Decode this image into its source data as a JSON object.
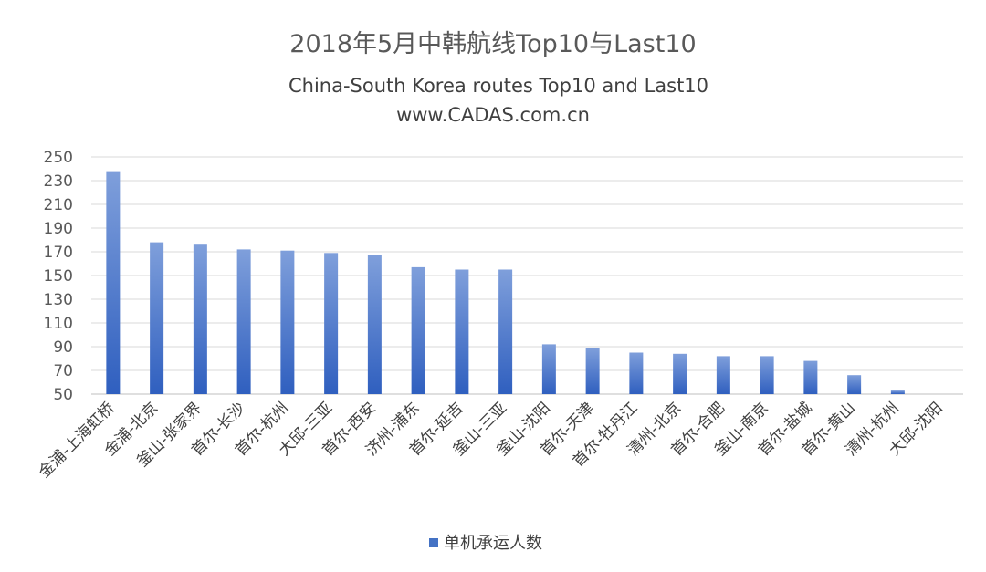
{
  "chart_data": {
    "type": "bar",
    "title": "2018年5月中韩航线Top10与Last10",
    "subtitle_en": "China-South Korea routes Top10 and Last10",
    "source": "www.CADAS.com.cn",
    "categories": [
      "金浦-上海虹桥",
      "金浦-北京",
      "釜山-张家界",
      "首尔-长沙",
      "首尔-杭州",
      "大邱-三亚",
      "首尔-西安",
      "济州-浦东",
      "首尔-延吉",
      "釜山-三亚",
      "釜山-沈阳",
      "首尔-天津",
      "首尔-牡丹江",
      "清州-北京",
      "首尔-合肥",
      "釜山-南京",
      "首尔-盐城",
      "首尔-黄山",
      "清州-杭州",
      "大邱-沈阳"
    ],
    "series": [
      {
        "name": "单机承运人数",
        "color": "#4472c4",
        "values": [
          238,
          178,
          176,
          172,
          171,
          169,
          167,
          157,
          155,
          155,
          92,
          89,
          85,
          84,
          82,
          82,
          78,
          66,
          53,
          50
        ]
      }
    ],
    "yticks": [
      50,
      70,
      90,
      110,
      130,
      150,
      170,
      190,
      210,
      230,
      250
    ],
    "ylim": [
      50,
      250
    ],
    "grid": true,
    "legend_position": "bottom"
  }
}
